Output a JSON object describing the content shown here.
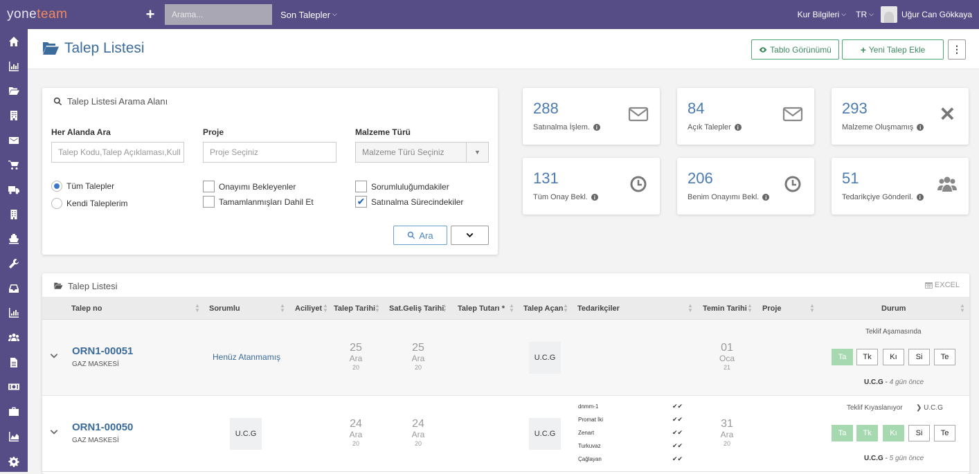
{
  "topbar": {
    "logo_a": "yone",
    "logo_b": "team",
    "search_placeholder": "Arama...",
    "recent_menu": "Son Talepler",
    "rates_menu": "Kur Bilgileri",
    "lang": "TR",
    "user_name": "Uğur Can Gökkaya"
  },
  "sidebar": [
    "home-icon",
    "bar-chart-icon",
    "folder-open-icon",
    "building-icon",
    "envelope-icon",
    "cart-icon",
    "truck-icon",
    "building-alt-icon",
    "ship-icon",
    "wrench-icon",
    "inbox-icon",
    "bar-chart-alt-icon",
    "users-icon",
    "file-icon",
    "money-icon",
    "briefcase-icon",
    "area-chart-icon",
    "gear-icon"
  ],
  "page": {
    "title": "Talep Listesi",
    "table_view_btn": "Tablo Görünümü",
    "new_request_btn": "Yeni Talep Ekle"
  },
  "search": {
    "title": "Talep Listesi Arama Alanı",
    "any_field_label": "Her Alanda Ara",
    "any_field_placeholder": "Talep Kodu,Talep Açıklaması,Kull",
    "project_label": "Proje",
    "project_placeholder": "Proje Seçiniz",
    "material_label": "Malzeme Türü",
    "material_placeholder": "Malzeme Türü Seçiniz",
    "radio_all": "Tüm Talepler",
    "radio_mine": "Kendi Taleplerim",
    "cb_awaiting": "Onayımı Bekleyenler",
    "cb_completed": "Tamamlanmışları Dahil Et",
    "cb_responsible": "Sorumluluğumdakiler",
    "cb_purchasing": "Satınalma Sürecindekiler",
    "search_btn": "Ara"
  },
  "stats": [
    {
      "value": "288",
      "label": "Satınalma İşlem.",
      "icon": "envelope-icon"
    },
    {
      "value": "84",
      "label": "Açık Talepler",
      "icon": "envelope-icon"
    },
    {
      "value": "293",
      "label": "Malzeme Oluşmamış",
      "icon": "close-icon"
    },
    {
      "value": "131",
      "label": "Tüm Onay Bekl.",
      "icon": "clock-icon"
    },
    {
      "value": "206",
      "label": "Benim Onayımı Bekl.",
      "icon": "clock-icon"
    },
    {
      "value": "51",
      "label": "Tedarikçiye Gönderil.",
      "icon": "users-icon"
    }
  ],
  "list": {
    "title": "Talep Listesi",
    "excel": "EXCEL",
    "columns": [
      "Talep no",
      "Sorumlu",
      "Aciliyet",
      "Talep Tarihi",
      "Sat.Geliş Tarihi",
      "Talep Tutarı *",
      "Talep Açan",
      "Tedarikçiler",
      "Temin Tarihi",
      "Proje",
      "Durum"
    ],
    "rows": [
      {
        "no": "ORN1-00051",
        "desc": "GAZ MASKESİ",
        "responsible": "Henüz Atanmamış",
        "req_date": {
          "d": "25",
          "m": "Ara",
          "y": "20"
        },
        "arr_date": {
          "d": "25",
          "m": "Ara",
          "y": "20"
        },
        "opener": "U.C.G",
        "supply_date": {
          "d": "01",
          "m": "Oca",
          "y": "21"
        },
        "stage": "Teklif Aşamasında",
        "steps": [
          "Ta",
          "Tk",
          "Kı",
          "Si",
          "Te"
        ],
        "by": "U.C.G",
        "ago": "4 gün önce"
      },
      {
        "no": "ORN1-00050",
        "desc": "GAZ MASKESİ",
        "responsible": "U.C.G",
        "req_date": {
          "d": "24",
          "m": "Ara",
          "y": "20"
        },
        "arr_date": {
          "d": "24",
          "m": "Ara",
          "y": "20"
        },
        "opener": "U.C.G",
        "suppliers": [
          "dnmm-1",
          "Promat İki",
          "Zenart",
          "Turkuvaz",
          "Çağlayan"
        ],
        "supply_date": {
          "d": "31",
          "m": "Ara",
          "y": "20"
        },
        "stage": "Teklif Kıyaslanıyor",
        "stage_next": "U.C.G",
        "steps": [
          "Ta",
          "Tk",
          "Kı",
          "Si",
          "Te"
        ],
        "by": "U.C.G",
        "ago": "5 gün önce"
      }
    ]
  }
}
